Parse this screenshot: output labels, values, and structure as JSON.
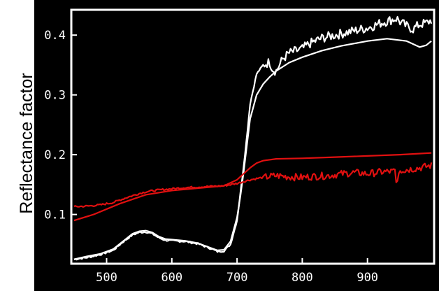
{
  "chart_data": {
    "type": "line",
    "ylabel": "Reflectance factor",
    "xlabel": "",
    "title": "",
    "xlim": [
      448,
      1000
    ],
    "ylim": [
      0.02,
      0.44
    ],
    "xticks": [
      500,
      600,
      700,
      800,
      900
    ],
    "yticks": [
      0.1,
      0.2,
      0.3,
      0.4
    ],
    "ytick_labels": [
      "0.1",
      "0.2",
      "0.3",
      "0.4"
    ],
    "background": "#000000",
    "frame_color": "#ffffff",
    "grid": false,
    "legend": "none",
    "series": [
      {
        "color": "#ffffff",
        "style": "smooth",
        "x": [
          450,
          470,
          490,
          510,
          525,
          540,
          550,
          560,
          570,
          580,
          590,
          600,
          620,
          640,
          650,
          660,
          670,
          680,
          690,
          700,
          705,
          710,
          715,
          720,
          730,
          740,
          750,
          760,
          780,
          800,
          830,
          860,
          900,
          930,
          960,
          980,
          990,
          998
        ],
        "y": [
          0.025,
          0.03,
          0.034,
          0.042,
          0.055,
          0.068,
          0.072,
          0.073,
          0.07,
          0.063,
          0.059,
          0.058,
          0.056,
          0.052,
          0.048,
          0.044,
          0.04,
          0.041,
          0.055,
          0.095,
          0.13,
          0.17,
          0.215,
          0.26,
          0.3,
          0.318,
          0.33,
          0.34,
          0.354,
          0.363,
          0.374,
          0.382,
          0.39,
          0.394,
          0.39,
          0.38,
          0.383,
          0.39
        ]
      },
      {
        "color": "#ffffff",
        "style": "noisy",
        "x": [
          450,
          470,
          490,
          510,
          525,
          540,
          550,
          560,
          570,
          580,
          590,
          600,
          620,
          640,
          650,
          660,
          670,
          680,
          690,
          700,
          705,
          710,
          715,
          720,
          730,
          740,
          750,
          755,
          760,
          770,
          780,
          800,
          810,
          830,
          850,
          870,
          900,
          920,
          935,
          945,
          950,
          960,
          970,
          980,
          990,
          998
        ],
        "y": [
          0.025,
          0.028,
          0.033,
          0.04,
          0.054,
          0.066,
          0.07,
          0.071,
          0.068,
          0.061,
          0.057,
          0.056,
          0.055,
          0.051,
          0.047,
          0.043,
          0.038,
          0.039,
          0.05,
          0.09,
          0.135,
          0.18,
          0.23,
          0.285,
          0.335,
          0.35,
          0.355,
          0.342,
          0.34,
          0.36,
          0.37,
          0.377,
          0.385,
          0.395,
          0.4,
          0.405,
          0.412,
          0.42,
          0.425,
          0.428,
          0.422,
          0.415,
          0.41,
          0.418,
          0.42,
          0.425
        ]
      },
      {
        "color": "#e01010",
        "style": "smooth",
        "x": [
          450,
          480,
          520,
          560,
          600,
          640,
          680,
          700,
          710,
          720,
          730,
          740,
          760,
          800,
          850,
          900,
          950,
          998
        ],
        "y": [
          0.09,
          0.1,
          0.118,
          0.133,
          0.14,
          0.144,
          0.148,
          0.158,
          0.168,
          0.178,
          0.186,
          0.19,
          0.193,
          0.194,
          0.196,
          0.198,
          0.2,
          0.203
        ]
      },
      {
        "color": "#e01010",
        "style": "noisy",
        "x": [
          450,
          470,
          490,
          510,
          530,
          550,
          560,
          580,
          600,
          620,
          640,
          660,
          680,
          700,
          720,
          740,
          760,
          780,
          800,
          820,
          840,
          860,
          880,
          900,
          920,
          940,
          960,
          980,
          998
        ],
        "y": [
          0.113,
          0.114,
          0.116,
          0.12,
          0.128,
          0.135,
          0.138,
          0.141,
          0.143,
          0.145,
          0.146,
          0.147,
          0.148,
          0.152,
          0.158,
          0.162,
          0.165,
          0.163,
          0.162,
          0.164,
          0.165,
          0.168,
          0.17,
          0.168,
          0.171,
          0.172,
          0.175,
          0.178,
          0.182
        ]
      }
    ]
  }
}
